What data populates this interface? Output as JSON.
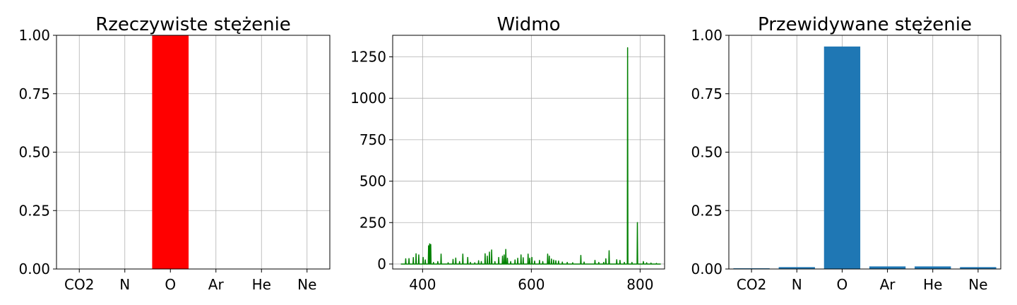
{
  "chart_data": [
    {
      "type": "bar",
      "title": "Rzeczywiste stężenie",
      "categories": [
        "CO2",
        "N",
        "O",
        "Ar",
        "He",
        "Ne"
      ],
      "values": [
        0,
        0,
        1.0,
        0,
        0,
        0
      ],
      "ylim": [
        0,
        1.0
      ],
      "yticks": [
        0.0,
        0.25,
        0.5,
        0.75,
        1.0
      ],
      "ytick_labels": [
        "0.00",
        "0.25",
        "0.50",
        "0.75",
        "1.00"
      ],
      "grid": true,
      "bar_color": "#ff0000"
    },
    {
      "type": "line",
      "title": "Widmo",
      "xlim": [
        345,
        845
      ],
      "ylim": [
        -30,
        1380
      ],
      "xticks": [
        400,
        600,
        800
      ],
      "xtick_labels": [
        "400",
        "600",
        "800"
      ],
      "yticks": [
        0,
        250,
        500,
        750,
        1000,
        1250
      ],
      "ytick_labels": [
        "0",
        "250",
        "500",
        "750",
        "1000",
        "1250"
      ],
      "grid": true,
      "line_color": "#008000",
      "series": [
        {
          "peaks": [
            [
              369,
              32
            ],
            [
              375,
              33
            ],
            [
              383,
              39
            ],
            [
              388,
              62
            ],
            [
              393,
              55
            ],
            [
              401,
              40
            ],
            [
              405,
              25
            ],
            [
              411,
              110
            ],
            [
              413,
              122
            ],
            [
              415,
              118
            ],
            [
              420,
              10
            ],
            [
              428,
              15
            ],
            [
              434,
              60
            ],
            [
              447,
              8
            ],
            [
              456,
              28
            ],
            [
              461,
              36
            ],
            [
              468,
              15
            ],
            [
              474,
              60
            ],
            [
              483,
              40
            ],
            [
              488,
              10
            ],
            [
              496,
              8
            ],
            [
              503,
              20
            ],
            [
              508,
              15
            ],
            [
              515,
              62
            ],
            [
              519,
              48
            ],
            [
              523,
              72
            ],
            [
              527,
              85
            ],
            [
              533,
              15
            ],
            [
              540,
              40
            ],
            [
              547,
              48
            ],
            [
              550,
              55
            ],
            [
              553,
              88
            ],
            [
              556,
              35
            ],
            [
              562,
              15
            ],
            [
              570,
              25
            ],
            [
              575,
              35
            ],
            [
              581,
              55
            ],
            [
              585,
              38
            ],
            [
              594,
              60
            ],
            [
              597,
              35
            ],
            [
              601,
              40
            ],
            [
              606,
              18
            ],
            [
              615,
              22
            ],
            [
              621,
              15
            ],
            [
              630,
              60
            ],
            [
              633,
              48
            ],
            [
              637,
              30
            ],
            [
              641,
              24
            ],
            [
              645,
              20
            ],
            [
              650,
              18
            ],
            [
              657,
              12
            ],
            [
              666,
              10
            ],
            [
              676,
              8
            ],
            [
              691,
              52
            ],
            [
              697,
              12
            ],
            [
              717,
              22
            ],
            [
              724,
              10
            ],
            [
              733,
              10
            ],
            [
              737,
              32
            ],
            [
              743,
              80
            ],
            [
              757,
              26
            ],
            [
              763,
              22
            ],
            [
              771,
              10
            ],
            [
              777,
              1305
            ],
            [
              785,
              10
            ],
            [
              795,
              250
            ],
            [
              806,
              15
            ],
            [
              812,
              8
            ],
            [
              820,
              6
            ],
            [
              830,
              4
            ]
          ],
          "x_range": [
            360,
            838
          ]
        }
      ]
    },
    {
      "type": "bar",
      "title": "Przewidywane stężenie",
      "categories": [
        "CO2",
        "N",
        "O",
        "Ar",
        "He",
        "Ne"
      ],
      "values": [
        0.003,
        0.008,
        0.952,
        0.011,
        0.011,
        0.008
      ],
      "ylim": [
        0,
        1.0
      ],
      "yticks": [
        0.0,
        0.25,
        0.5,
        0.75,
        1.0
      ],
      "ytick_labels": [
        "0.00",
        "0.25",
        "0.50",
        "0.75",
        "1.00"
      ],
      "grid": true,
      "bar_color": "#1f77b4"
    }
  ]
}
